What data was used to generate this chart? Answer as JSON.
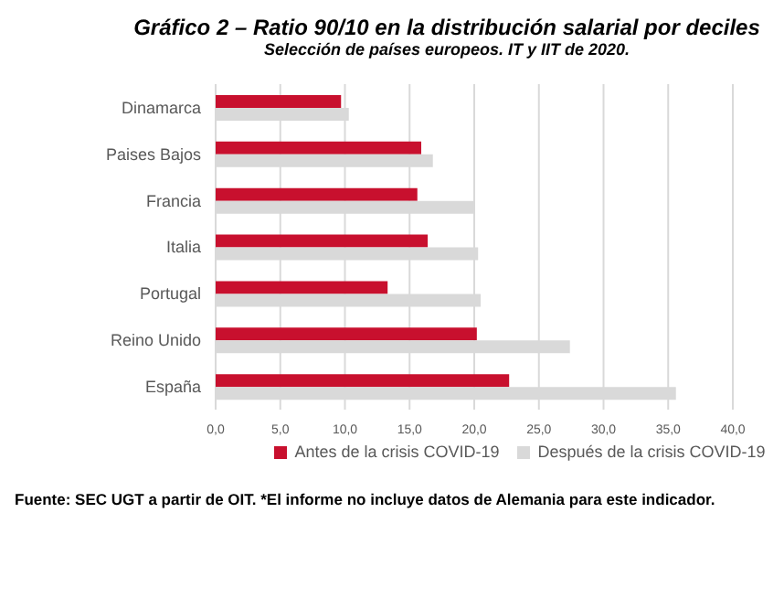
{
  "chart_data": {
    "type": "bar",
    "orientation": "horizontal",
    "title": "Gráfico 2 – Ratio 90/10 en la distribución salarial por deciles",
    "subtitle": "Selección de países europeos. IT y IIT de 2020.",
    "categories": [
      "Dinamarca",
      "Paises Bajos",
      "Francia",
      "Italia",
      "Portugal",
      "Reino Unido",
      "España"
    ],
    "series": [
      {
        "name": "Antes de la crisis COVID-19",
        "color": "#c8102e",
        "values": [
          9.7,
          15.9,
          15.6,
          16.4,
          13.3,
          20.2,
          22.7
        ]
      },
      {
        "name": "Después de la crisis COVID-19",
        "color": "#d9d9d9",
        "values": [
          10.3,
          16.8,
          20.0,
          20.3,
          20.5,
          27.4,
          35.6
        ]
      }
    ],
    "xlim": [
      0,
      40
    ],
    "xticks": [
      {
        "value": 0,
        "label": "0,0"
      },
      {
        "value": 5,
        "label": "5,0"
      },
      {
        "value": 10,
        "label": "10,0"
      },
      {
        "value": 15,
        "label": "15,0"
      },
      {
        "value": 20,
        "label": "20,0"
      },
      {
        "value": 25,
        "label": "25,0"
      },
      {
        "value": 30,
        "label": "30,0"
      },
      {
        "value": 35,
        "label": "35,0"
      },
      {
        "value": 40,
        "label": "40,0"
      }
    ],
    "grid": "x",
    "legend": "bottom",
    "annotations": [
      "Fuente: SEC UGT a partir de OIT. *El informe no incluye datos de Alemania para este indicador."
    ]
  }
}
